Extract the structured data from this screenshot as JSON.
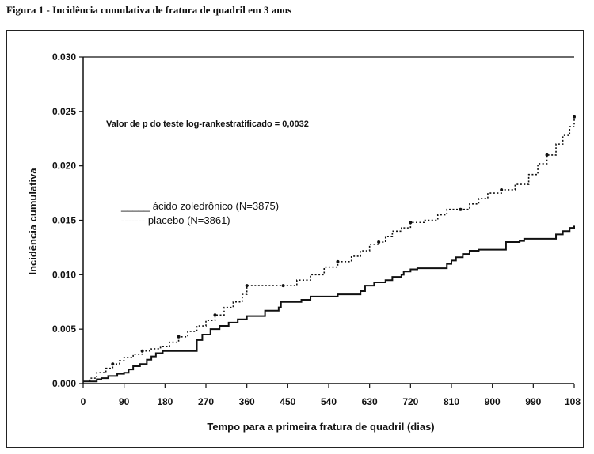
{
  "figure_title": "Figura 1 - Incidência cumulativa de fratura de quadril em 3 anos",
  "chart_data": {
    "type": "line",
    "title": "",
    "xlabel": "Tempo para a primeira fratura de quadril (dias)",
    "ylabel": "Incidência cumulativa",
    "xlim": [
      0,
      1080
    ],
    "ylim": [
      0,
      0.03
    ],
    "x_ticks": [
      "0",
      "90",
      "180",
      "270",
      "360",
      "450",
      "540",
      "630",
      "720",
      "810",
      "900",
      "990",
      "108"
    ],
    "y_ticks": [
      "0.000",
      "0.005",
      "0.010",
      "0.015",
      "0.020",
      "0.025",
      "0.030"
    ],
    "annotation": "Valor de p do teste log-rankestratificado = 0,0032",
    "legend_position": "center-left",
    "series": [
      {
        "name": "ácido zoledrônico (N=3875)",
        "legend_label": "_____ ácido zoledrônico (N=3875)",
        "style": "solid",
        "x": [
          0,
          15,
          30,
          40,
          55,
          75,
          90,
          100,
          110,
          125,
          140,
          150,
          160,
          175,
          240,
          250,
          262,
          280,
          300,
          320,
          340,
          360,
          400,
          430,
          435,
          470,
          480,
          500,
          530,
          560,
          575,
          580,
          610,
          620,
          640,
          665,
          680,
          700,
          705,
          715,
          720,
          735,
          790,
          800,
          810,
          820,
          835,
          850,
          870,
          920,
          930,
          950,
          960,
          970,
          1030,
          1040,
          1055,
          1070,
          1080
        ],
        "y": [
          0.0002,
          0.0002,
          0.0004,
          0.0005,
          0.0007,
          0.0009,
          0.001,
          0.0013,
          0.0016,
          0.0018,
          0.0022,
          0.0025,
          0.0028,
          0.003,
          0.003,
          0.004,
          0.0045,
          0.005,
          0.0053,
          0.0056,
          0.0059,
          0.0062,
          0.0067,
          0.007,
          0.0075,
          0.0075,
          0.0077,
          0.008,
          0.008,
          0.0082,
          0.0082,
          0.0082,
          0.0085,
          0.009,
          0.0093,
          0.0095,
          0.0098,
          0.01,
          0.0103,
          0.0103,
          0.0105,
          0.0106,
          0.0106,
          0.011,
          0.0113,
          0.0116,
          0.0119,
          0.0122,
          0.0123,
          0.0123,
          0.013,
          0.013,
          0.0131,
          0.0133,
          0.0133,
          0.0137,
          0.014,
          0.0143,
          0.0145
        ]
      },
      {
        "name": "placebo (N=3861)",
        "legend_label": "------- placebo (N=3861)",
        "style": "dotted",
        "x": [
          0,
          15,
          30,
          50,
          65,
          80,
          90,
          110,
          130,
          150,
          170,
          190,
          210,
          230,
          250,
          270,
          290,
          310,
          330,
          350,
          360,
          375,
          400,
          420,
          440,
          470,
          500,
          530,
          560,
          590,
          610,
          630,
          650,
          665,
          680,
          700,
          720,
          750,
          780,
          800,
          830,
          850,
          870,
          890,
          920,
          950,
          980,
          1000,
          1020,
          1040,
          1055,
          1070,
          1080
        ],
        "y": [
          0.0002,
          0.0005,
          0.001,
          0.0014,
          0.0018,
          0.0021,
          0.0024,
          0.0027,
          0.003,
          0.0032,
          0.0034,
          0.0038,
          0.0043,
          0.0048,
          0.0053,
          0.0058,
          0.0063,
          0.007,
          0.0075,
          0.0082,
          0.009,
          0.009,
          0.009,
          0.009,
          0.009,
          0.0095,
          0.01,
          0.0107,
          0.0112,
          0.0117,
          0.0122,
          0.0128,
          0.013,
          0.0135,
          0.014,
          0.0143,
          0.0148,
          0.015,
          0.0155,
          0.016,
          0.016,
          0.0165,
          0.017,
          0.0175,
          0.0178,
          0.0183,
          0.0192,
          0.0202,
          0.021,
          0.022,
          0.0228,
          0.0236,
          0.0245
        ]
      }
    ]
  }
}
